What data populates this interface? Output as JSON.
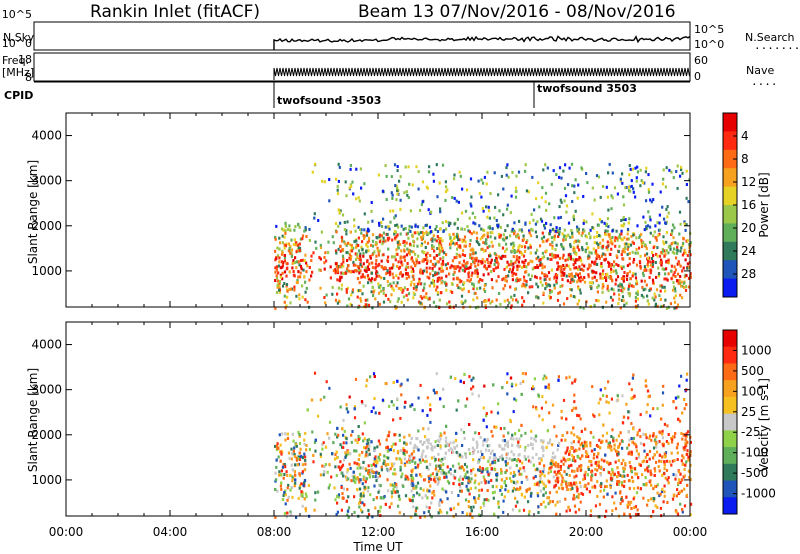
{
  "header": {
    "station": "Rankin Inlet (fitACF)",
    "beam_date": "Beam 13  07/Nov/2016 - 08/Nov/2016"
  },
  "summary_panels": {
    "nsky_label": "N.Sky",
    "nsky_ticks": [
      "10^5",
      "10^0"
    ],
    "nsearch_label": "N.Search",
    "nsearch_ticks": [
      "10^5",
      "10^0"
    ],
    "freq_label": "Freq.",
    "freq_unit": "[MHz]",
    "freq_ticks": [
      "18",
      "8"
    ],
    "nave_label": "Nave",
    "nave_ticks": [
      "60",
      "0"
    ],
    "cpid_label": "CPID",
    "cpid_entries": [
      {
        "label": "twofsound -3503",
        "start_hour": 8.0
      },
      {
        "label": "twofsound 3503",
        "start_hour": 18.0
      }
    ]
  },
  "chart_data": [
    {
      "type": "heatmap",
      "name": "Power",
      "xlabel": "",
      "ylabel": "Slant Range [km]",
      "x_range_hours": [
        0,
        24
      ],
      "y_range": [
        200,
        4500
      ],
      "y_ticks": [
        "1000",
        "2000",
        "3000",
        "4000"
      ],
      "colorbar": {
        "label": "Power [dB]",
        "ticks": [
          "4",
          "8",
          "12",
          "16",
          "20",
          "24",
          "28"
        ],
        "colors": [
          "#0a1cf0",
          "#1f55b8",
          "#2f7a5a",
          "#5fae5a",
          "#9cc84a",
          "#e6d224",
          "#f7a21e",
          "#ff6a14",
          "#ff2a10",
          "#e60000"
        ]
      },
      "data_coverage_hours": [
        8.0,
        24.0
      ],
      "main_echo_band_km": [
        700,
        2000
      ],
      "strongest_echo_km": [
        800,
        1400
      ]
    },
    {
      "type": "heatmap",
      "name": "Velocity",
      "xlabel": "Time UT",
      "ylabel": "Slant Range [km]",
      "x_range_hours": [
        0,
        24
      ],
      "y_range": [
        200,
        4500
      ],
      "y_ticks": [
        "1000",
        "2000",
        "3000",
        "4000"
      ],
      "colorbar": {
        "label": "Velocity [m s-1]",
        "ticks": [
          "1000",
          "500",
          "100",
          "25",
          "-25",
          "-100",
          "-500",
          "-1000"
        ],
        "colors": [
          "#0a1cf0",
          "#1f55b8",
          "#2f7a5a",
          "#5fae5a",
          "#8fd24a",
          "#c8c8c8",
          "#f5c020",
          "#f7a21e",
          "#ff6a14",
          "#ff2a10",
          "#e60000"
        ]
      },
      "data_coverage_hours": [
        8.0,
        24.0
      ],
      "main_echo_band_km": [
        700,
        2000
      ]
    }
  ],
  "time_axis": {
    "tick_labels": [
      "00:00",
      "04:00",
      "08:00",
      "12:00",
      "16:00",
      "20:00",
      "00:00"
    ],
    "label": "Time UT"
  }
}
